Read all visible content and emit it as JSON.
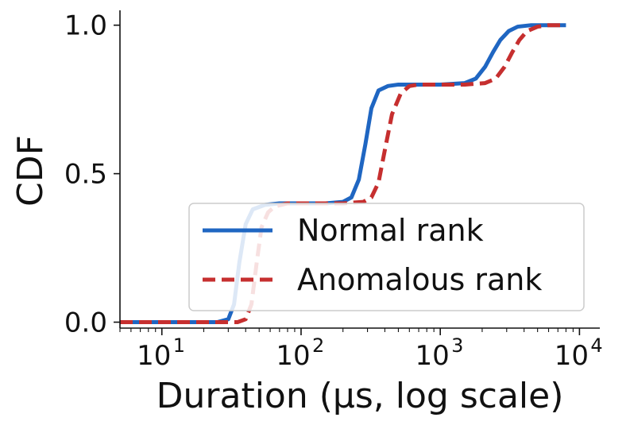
{
  "chart_data": {
    "type": "line",
    "title": "",
    "xlabel": "Duration (μs, log scale)",
    "ylabel": "CDF",
    "x_scale": "log",
    "xlim": [
      5,
      14000
    ],
    "ylim": [
      -0.02,
      1.05
    ],
    "x_ticks": [
      {
        "value": 10,
        "label": "10",
        "exp": "1"
      },
      {
        "value": 100,
        "label": "10",
        "exp": "2"
      },
      {
        "value": 1000,
        "label": "10",
        "exp": "3"
      },
      {
        "value": 10000,
        "label": "10",
        "exp": "4"
      }
    ],
    "y_ticks": [
      {
        "value": 0.0,
        "label": "0.0"
      },
      {
        "value": 0.5,
        "label": "0.5"
      },
      {
        "value": 1.0,
        "label": "1.0"
      }
    ],
    "grid": false,
    "legend_position": "lower-right",
    "series": [
      {
        "name": "Normal rank",
        "color": "#1f66c2",
        "line_style": "solid",
        "x": [
          5,
          25,
          30,
          33,
          36,
          40,
          45,
          55,
          70,
          100,
          150,
          200,
          230,
          260,
          290,
          320,
          360,
          420,
          500,
          700,
          1000,
          1500,
          1800,
          2100,
          2400,
          2700,
          3100,
          3600,
          4500,
          6000,
          8000
        ],
        "y": [
          0.0,
          0.0,
          0.01,
          0.06,
          0.2,
          0.33,
          0.38,
          0.395,
          0.4,
          0.4,
          0.4,
          0.405,
          0.42,
          0.48,
          0.6,
          0.72,
          0.78,
          0.795,
          0.8,
          0.8,
          0.8,
          0.805,
          0.82,
          0.86,
          0.91,
          0.95,
          0.98,
          0.995,
          1.0,
          1.0,
          1.0
        ]
      },
      {
        "name": "Anomalous rank",
        "color": "#c62f2f",
        "line_style": "dashed",
        "x": [
          5,
          35,
          40,
          44,
          48,
          52,
          58,
          65,
          80,
          120,
          200,
          280,
          320,
          360,
          400,
          450,
          520,
          600,
          700,
          1000,
          1500,
          2100,
          2500,
          2900,
          3300,
          3700,
          4200,
          5000,
          6000,
          8000
        ],
        "y": [
          0.0,
          0.0,
          0.01,
          0.06,
          0.2,
          0.32,
          0.37,
          0.39,
          0.4,
          0.4,
          0.4,
          0.405,
          0.42,
          0.47,
          0.58,
          0.7,
          0.77,
          0.795,
          0.8,
          0.8,
          0.8,
          0.805,
          0.82,
          0.86,
          0.91,
          0.95,
          0.98,
          0.995,
          1.0,
          1.0
        ]
      }
    ]
  }
}
